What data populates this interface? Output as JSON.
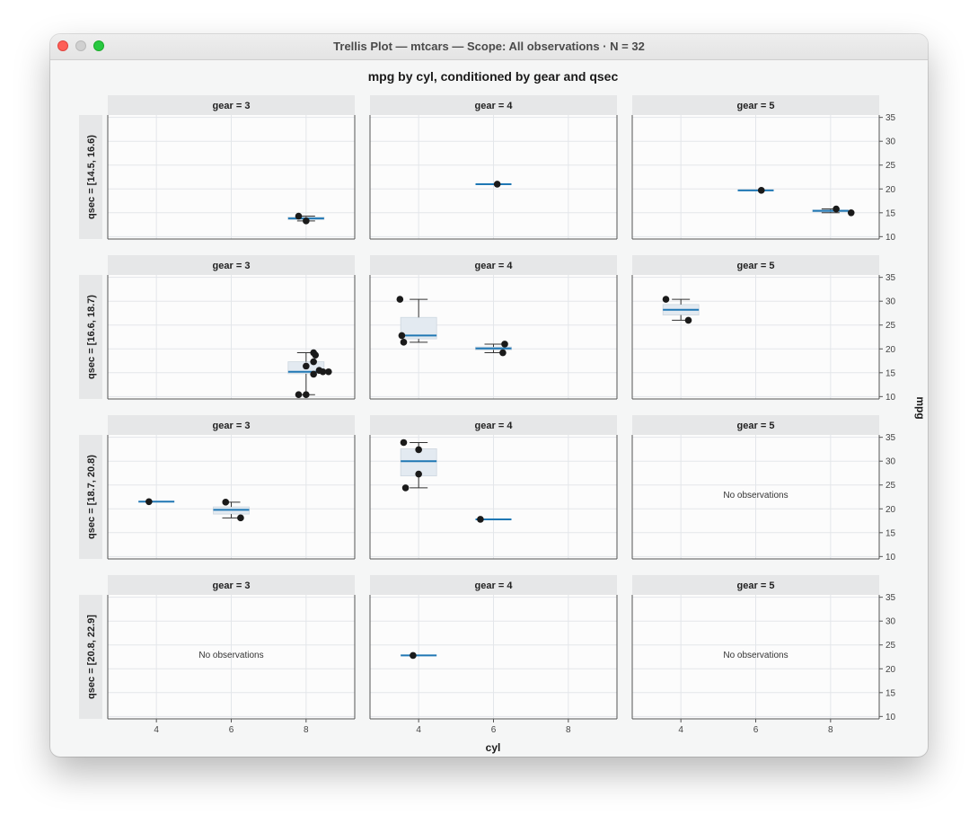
{
  "window": {
    "title": "Trellis Plot — mtcars — Scope: All observations · N = 32"
  },
  "colors": {
    "median": "#1f77b4",
    "box_fill": "#e3eaf1",
    "point": "#1a1a1a",
    "strip": "#e6e7e8",
    "panel_bg": "#fcfcfc",
    "grid": "#e3e6ea"
  },
  "chart_data": {
    "type": "box-and-point trellis",
    "title": "mpg by cyl, conditioned by gear and qsec",
    "xlabel": "cyl",
    "ylabel": "mpg",
    "x_ticks": [
      4,
      6,
      8
    ],
    "y_ticks": [
      10,
      15,
      20,
      25,
      30,
      35
    ],
    "xlim": [
      2.7,
      9.3
    ],
    "ylim": [
      9.5,
      35.5
    ],
    "columns": [
      "gear = 3",
      "gear = 4",
      "gear = 5"
    ],
    "rows": [
      "qsec = [14.5, 16.6)",
      "qsec = [16.6, 18.7)",
      "qsec = [18.7, 20.8)",
      "qsec = [20.8, 22.9]"
    ],
    "empty_label": "No observations",
    "panels": [
      {
        "row": 0,
        "col": 0,
        "groups": [
          {
            "cyl": 8,
            "median": 13.8,
            "q1": 13.6,
            "q3": 14.1,
            "wmin": 13.3,
            "wmax": 14.3,
            "points": [
              [
                7.8,
                14.3
              ],
              [
                8.0,
                13.3
              ]
            ]
          }
        ]
      },
      {
        "row": 0,
        "col": 1,
        "groups": [
          {
            "cyl": 6,
            "median": 21.0,
            "q1": 21.0,
            "q3": 21.0,
            "wmin": 21.0,
            "wmax": 21.0,
            "points": [
              [
                6.1,
                21.0
              ]
            ]
          }
        ]
      },
      {
        "row": 0,
        "col": 2,
        "groups": [
          {
            "cyl": 6,
            "median": 19.7,
            "q1": 19.7,
            "q3": 19.7,
            "wmin": 19.7,
            "wmax": 19.7,
            "points": [
              [
                6.15,
                19.7
              ]
            ]
          },
          {
            "cyl": 8,
            "median": 15.4,
            "q1": 15.2,
            "q3": 15.6,
            "wmin": 15.0,
            "wmax": 15.8,
            "points": [
              [
                8.15,
                15.8
              ],
              [
                8.55,
                15.0
              ]
            ]
          }
        ]
      },
      {
        "row": 1,
        "col": 0,
        "groups": [
          {
            "cyl": 8,
            "median": 15.2,
            "q1": 14.8,
            "q3": 17.3,
            "wmin": 10.4,
            "wmax": 19.2,
            "points": [
              [
                8.2,
                19.2
              ],
              [
                8.25,
                18.7
              ],
              [
                8.2,
                17.3
              ],
              [
                8.0,
                16.4
              ],
              [
                8.35,
                15.5
              ],
              [
                8.45,
                15.2
              ],
              [
                8.6,
                15.2
              ],
              [
                8.2,
                14.7
              ],
              [
                7.8,
                10.4
              ],
              [
                8.0,
                10.4
              ]
            ]
          }
        ]
      },
      {
        "row": 1,
        "col": 1,
        "groups": [
          {
            "cyl": 4,
            "median": 22.8,
            "q1": 22.1,
            "q3": 26.6,
            "wmin": 21.4,
            "wmax": 30.4,
            "points": [
              [
                3.5,
                30.4
              ],
              [
                3.55,
                22.8
              ],
              [
                3.6,
                21.4
              ]
            ]
          },
          {
            "cyl": 6,
            "median": 20.1,
            "q1": 19.8,
            "q3": 20.4,
            "wmin": 19.2,
            "wmax": 21.0,
            "points": [
              [
                6.3,
                21.0
              ],
              [
                6.25,
                19.2
              ]
            ]
          }
        ]
      },
      {
        "row": 1,
        "col": 2,
        "groups": [
          {
            "cyl": 4,
            "median": 28.2,
            "q1": 27.1,
            "q3": 29.3,
            "wmin": 26.0,
            "wmax": 30.4,
            "points": [
              [
                3.6,
                30.4
              ],
              [
                4.2,
                26.0
              ]
            ]
          }
        ]
      },
      {
        "row": 2,
        "col": 0,
        "groups": [
          {
            "cyl": 4,
            "median": 21.5,
            "q1": 21.5,
            "q3": 21.5,
            "wmin": 21.5,
            "wmax": 21.5,
            "points": [
              [
                3.8,
                21.5
              ]
            ]
          },
          {
            "cyl": 6,
            "median": 19.8,
            "q1": 18.9,
            "q3": 20.4,
            "wmin": 18.1,
            "wmax": 21.4,
            "points": [
              [
                5.85,
                21.4
              ],
              [
                6.25,
                18.1
              ]
            ]
          }
        ]
      },
      {
        "row": 2,
        "col": 1,
        "groups": [
          {
            "cyl": 4,
            "median": 30.0,
            "q1": 26.9,
            "q3": 32.6,
            "wmin": 24.4,
            "wmax": 33.9,
            "points": [
              [
                3.6,
                33.9
              ],
              [
                4.0,
                32.4
              ],
              [
                4.0,
                27.3
              ],
              [
                3.65,
                24.4
              ]
            ]
          },
          {
            "cyl": 6,
            "median": 17.8,
            "q1": 17.8,
            "q3": 17.8,
            "wmin": 17.8,
            "wmax": 17.8,
            "points": [
              [
                5.65,
                17.8
              ]
            ]
          }
        ]
      },
      {
        "row": 2,
        "col": 2,
        "groups": []
      },
      {
        "row": 3,
        "col": 0,
        "groups": []
      },
      {
        "row": 3,
        "col": 1,
        "groups": [
          {
            "cyl": 4,
            "median": 22.8,
            "q1": 22.8,
            "q3": 22.8,
            "wmin": 22.8,
            "wmax": 22.8,
            "points": [
              [
                3.85,
                22.8
              ]
            ]
          }
        ]
      },
      {
        "row": 3,
        "col": 2,
        "groups": []
      }
    ]
  }
}
